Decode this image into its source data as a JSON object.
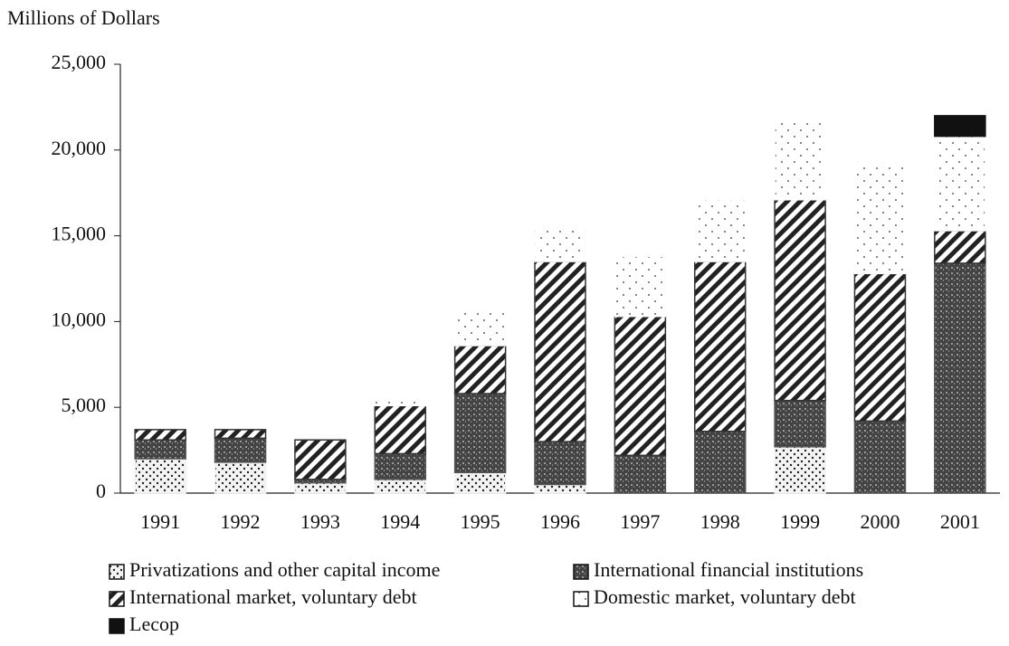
{
  "chart_data": {
    "type": "stacked_bar",
    "y_axis_label": "Millions of Dollars",
    "categories": [
      "1991",
      "1992",
      "1993",
      "1994",
      "1995",
      "1996",
      "1997",
      "1998",
      "1999",
      "2000",
      "2001"
    ],
    "series": [
      {
        "name": "Privatizations and other capital income",
        "color": "#f2f2f2",
        "values": [
          2000,
          1800,
          600,
          800,
          1200,
          500,
          0,
          0,
          2700,
          0,
          0
        ]
      },
      {
        "name": "International financial institutions",
        "color": "#555555",
        "values": [
          1100,
          1400,
          200,
          1500,
          4600,
          2500,
          2200,
          3600,
          2700,
          4200,
          13400
        ]
      },
      {
        "name": "International market, voluntary debt",
        "color": "#333333",
        "values": [
          600,
          500,
          2300,
          2800,
          2800,
          10500,
          8100,
          9900,
          11700,
          8600,
          1900
        ]
      },
      {
        "name": "Domestic market, voluntary debt",
        "color": "#ffffff",
        "values": [
          0,
          0,
          0,
          500,
          2000,
          2000,
          3500,
          3600,
          4600,
          6500,
          5500
        ]
      },
      {
        "name": "Lecop",
        "color": "#111111",
        "values": [
          0,
          0,
          0,
          0,
          0,
          0,
          0,
          0,
          0,
          0,
          1200
        ]
      }
    ],
    "ylim": [
      0,
      25000
    ],
    "yticks": [
      0,
      {
        "value": 5000,
        "label": "5,000"
      },
      {
        "value": 10000,
        "label": "10,000"
      },
      {
        "value": 15000,
        "label": "15,000"
      },
      {
        "value": 20000,
        "label": "20,000"
      },
      {
        "value": 25000,
        "label": "25,000"
      }
    ]
  }
}
